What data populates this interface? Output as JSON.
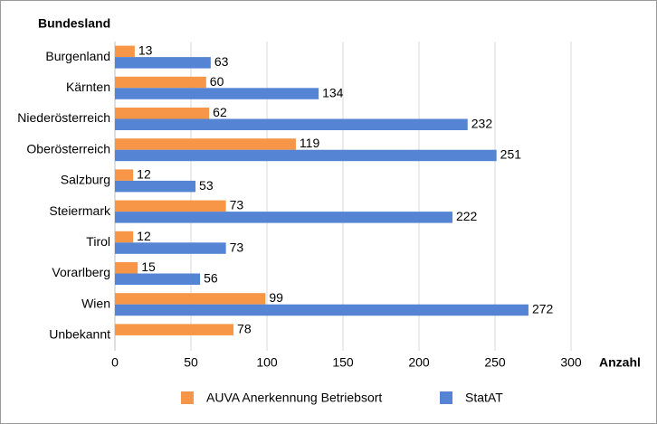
{
  "chart_data": {
    "type": "hbar",
    "y_axis_label": "Bundesland",
    "x_axis_label": "Anzahl",
    "categories": [
      "Burgenland",
      "Kärnten",
      "Niederösterreich",
      "Oberösterreich",
      "Salzburg",
      "Steiermark",
      "Tirol",
      "Vorarlberg",
      "Wien",
      "Unbekannt"
    ],
    "series": [
      {
        "name": "AUVA Anerkennung Betriebsort",
        "color": "#f79646",
        "values": [
          13,
          60,
          62,
          119,
          12,
          73,
          12,
          15,
          99,
          78
        ]
      },
      {
        "name": "StatAT",
        "color": "#5584d4",
        "values": [
          63,
          134,
          232,
          251,
          53,
          222,
          73,
          56,
          272,
          null
        ]
      }
    ],
    "xlim": [
      0,
      300
    ],
    "xticks": [
      0,
      50,
      100,
      150,
      200,
      250,
      300
    ],
    "grid": true,
    "legend": "bottom"
  }
}
